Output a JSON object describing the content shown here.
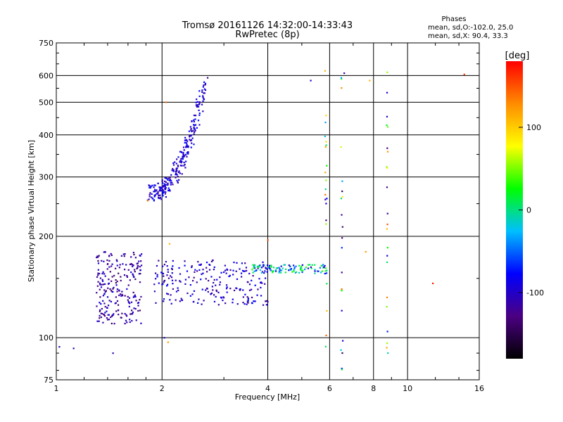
{
  "title": "Tromsø 20161126 14:32:00-14:33:43",
  "subtitle": "RwPretec (8p)",
  "phase_info": {
    "heading": "Phases",
    "line1": "mean, sd,O:-102.0, 25.0",
    "line2": "mean, sd,X:  90.4, 33.3"
  },
  "chart_data": {
    "type": "scatter",
    "title": "Tromsø 20161126 14:32:00-14:33:43",
    "subtitle": "RwPretec (8p)",
    "xlabel": "Frequency [MHz]",
    "ylabel": "Stationary phase Virtual Height [km]",
    "x_scale": "log",
    "y_scale": "log",
    "xlim": [
      1,
      16
    ],
    "ylim": [
      75,
      750
    ],
    "x_ticks": [
      1,
      2,
      4,
      6,
      8,
      10,
      16
    ],
    "y_ticks": [
      75,
      100,
      200,
      300,
      400,
      500,
      600,
      750
    ],
    "grid": true,
    "colorbar": {
      "label": "[deg]",
      "range": [
        -180,
        180
      ],
      "ticks": [
        100,
        0,
        -100
      ],
      "colors": [
        "#000000",
        "#4b0082",
        "#0000ff",
        "#00bfff",
        "#00ff00",
        "#ffff00",
        "#ff8c00",
        "#ff0000"
      ]
    },
    "clusters": [
      {
        "name": "F-layer trace",
        "x_range": [
          1.85,
          2.65
        ],
        "y_range": [
          270,
          570
        ],
        "phase_center": -95
      },
      {
        "name": "E-Es low trace",
        "x_range": [
          1.3,
          1.75
        ],
        "y_range": [
          110,
          180
        ],
        "phase_center": -115
      },
      {
        "name": "E-layer band 2-4 MHz",
        "x_range": [
          1.9,
          4.0
        ],
        "y_range": [
          125,
          170
        ],
        "phase_center": -100
      },
      {
        "name": "Es band 4-6 MHz",
        "x_range": [
          3.6,
          5.9
        ],
        "y_range": [
          155,
          165
        ],
        "phase_center": -40
      },
      {
        "name": "noise columns",
        "x_values": [
          5.85,
          6.5,
          8.75
        ],
        "y_range": [
          80,
          620
        ],
        "phase_center": 0
      }
    ],
    "points": [
      {
        "x": 1.02,
        "y": 94,
        "phase": -110
      },
      {
        "x": 1.12,
        "y": 93,
        "phase": -110
      },
      {
        "x": 1.45,
        "y": 90,
        "phase": -110
      },
      {
        "x": 2.03,
        "y": 100,
        "phase": -100
      },
      {
        "x": 2.08,
        "y": 97,
        "phase": 120
      },
      {
        "x": 2.05,
        "y": 500,
        "phase": 140
      },
      {
        "x": 5.3,
        "y": 580,
        "phase": -100
      },
      {
        "x": 6.6,
        "y": 610,
        "phase": -110
      },
      {
        "x": 7.8,
        "y": 580,
        "phase": 110
      },
      {
        "x": 7.6,
        "y": 180,
        "phase": 120
      },
      {
        "x": 11.8,
        "y": 145,
        "phase": 170
      },
      {
        "x": 14.5,
        "y": 605,
        "phase": 160
      },
      {
        "x": 4.0,
        "y": 195,
        "phase": 150
      },
      {
        "x": 2.1,
        "y": 190,
        "phase": 110
      },
      {
        "x": 1.82,
        "y": 255,
        "phase": 120
      }
    ]
  }
}
